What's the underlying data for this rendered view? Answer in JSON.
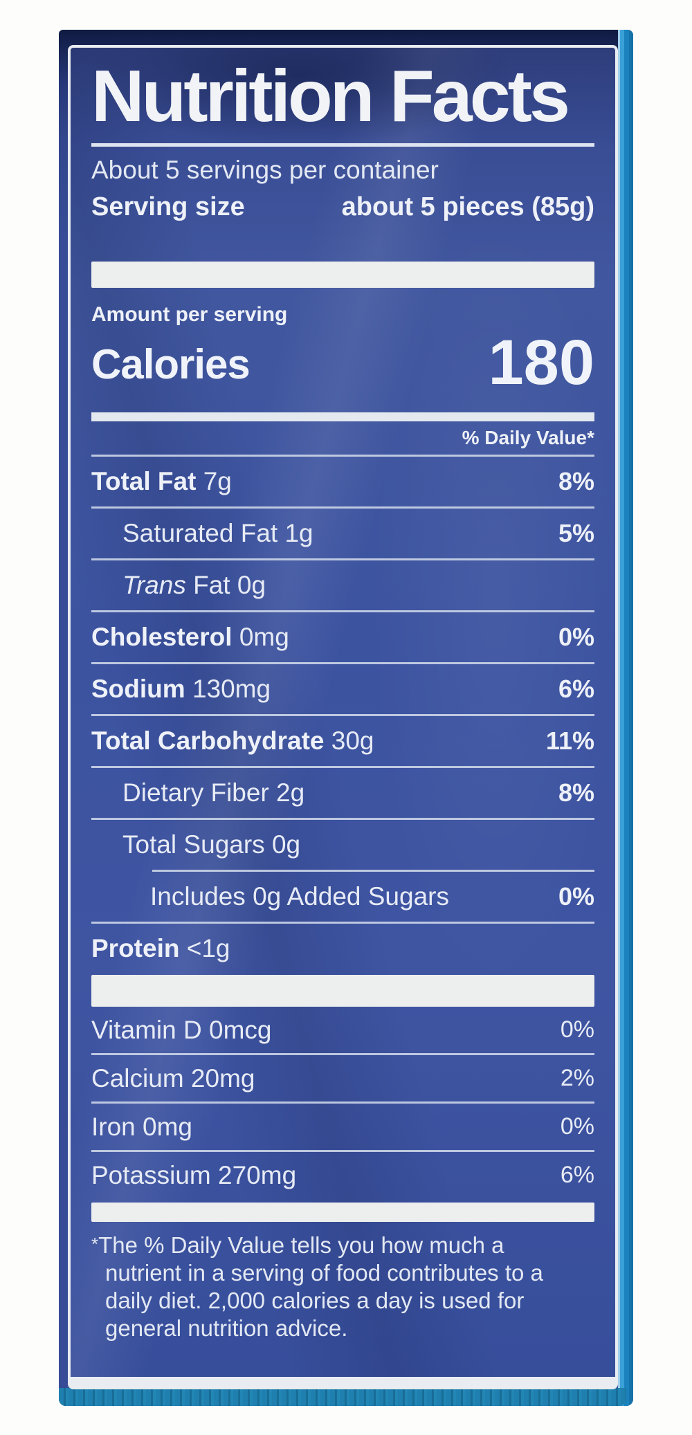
{
  "colors": {
    "page_background": "#fdfdfb",
    "package_navy": "#1b2a5e",
    "label_blue": "#3c53a0",
    "frame_white": "#e9ecf0",
    "text_white": "#e7ebf5",
    "cyan_edge": "#1b82bd",
    "teal_bottom_edge": "#1f7fae",
    "hairline": "#c9d3e6"
  },
  "label": {
    "title": "Nutrition Facts",
    "servings_line": "About 5 servings per container",
    "serving_size_label": "Serving size",
    "serving_size_value": "about 5 pieces (85g)",
    "amount_per_serving": "Amount per serving",
    "calories_label": "Calories",
    "calories_value": "180",
    "daily_value_header": "% Daily Value*",
    "nutrients": [
      {
        "bold": "Total Fat",
        "italic": "",
        "regular": " 7g",
        "dv": "8%",
        "indent": 0
      },
      {
        "bold": "",
        "italic": "",
        "regular": "Saturated Fat 1g",
        "dv": "5%",
        "indent": 1
      },
      {
        "bold": "",
        "italic": "Trans",
        "regular": " Fat 0g",
        "dv": "",
        "indent": 1
      },
      {
        "bold": "Cholesterol",
        "italic": "",
        "regular": " 0mg",
        "dv": "0%",
        "indent": 0
      },
      {
        "bold": "Sodium",
        "italic": "",
        "regular": " 130mg",
        "dv": "6%",
        "indent": 0
      },
      {
        "bold": "Total Carbohydrate",
        "italic": "",
        "regular": " 30g",
        "dv": "11%",
        "indent": 0
      },
      {
        "bold": "",
        "italic": "",
        "regular": "Dietary Fiber 2g",
        "dv": "8%",
        "indent": 1
      },
      {
        "bold": "",
        "italic": "",
        "regular": "Total Sugars 0g",
        "dv": "",
        "indent": 1
      },
      {
        "bold": "",
        "italic": "",
        "regular": "Includes 0g Added Sugars",
        "dv": "0%",
        "indent": 2
      },
      {
        "bold": "Protein",
        "italic": "",
        "regular": " <1g",
        "dv": "",
        "indent": 0
      }
    ],
    "vitamins": [
      {
        "name": "Vitamin D 0mcg",
        "dv": "0%"
      },
      {
        "name": "Calcium 20mg",
        "dv": "2%"
      },
      {
        "name": "Iron 0mg",
        "dv": "0%"
      },
      {
        "name": "Potassium 270mg",
        "dv": "6%"
      }
    ],
    "footnote_marker": "*",
    "footnote_text": "The % Daily Value tells you how much a nutrient in a serving of food contributes to a daily diet. 2,000 calories a day is used for general nutrition advice."
  }
}
